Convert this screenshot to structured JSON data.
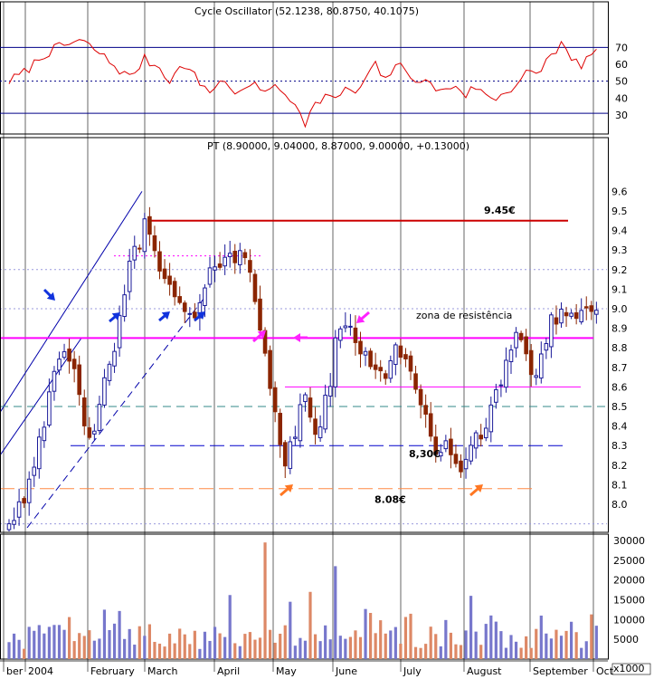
{
  "chart_data": {
    "type": "candlestick",
    "colors": {
      "up": "#1a1a99",
      "down": "#8b2500",
      "volume_up": "#7777cc",
      "volume_down": "#dd8866",
      "resistance": "#ff00ff",
      "support": "#0000cc",
      "low_support": "#ff8844",
      "top_line": "#cc0000",
      "oscillator": "#dd0000",
      "dotted": "#9999dd",
      "teal": "#338888"
    },
    "months": [
      "ber",
      "2004",
      "February",
      "March",
      "April",
      "May",
      "June",
      "July",
      "August",
      "September",
      "Oct"
    ],
    "oscillator": {
      "header": "Cycle Oscillator (52.1238, 80.8750, 40.1075)",
      "ylim": [
        20,
        80
      ],
      "ticks": [
        "30",
        "40",
        "50",
        "60",
        "70"
      ],
      "upper_band": 70,
      "mid_band": 50,
      "lower_band": 31,
      "anchors": [
        [
          0,
          50
        ],
        [
          3,
          55
        ],
        [
          7,
          66
        ],
        [
          10,
          70
        ],
        [
          14,
          74
        ],
        [
          17,
          69
        ],
        [
          21,
          59
        ],
        [
          24,
          52
        ],
        [
          27,
          63
        ],
        [
          30,
          58
        ],
        [
          32,
          51
        ],
        [
          35,
          60
        ],
        [
          38,
          49
        ],
        [
          40,
          44
        ],
        [
          42,
          50
        ],
        [
          44,
          47
        ],
        [
          46,
          42
        ],
        [
          48,
          48
        ],
        [
          50,
          45
        ],
        [
          52,
          47
        ],
        [
          54,
          44
        ],
        [
          56,
          40
        ],
        [
          58,
          33
        ],
        [
          59,
          26
        ],
        [
          61,
          36
        ],
        [
          63,
          42
        ],
        [
          65,
          38
        ],
        [
          67,
          47
        ],
        [
          69,
          41
        ],
        [
          71,
          52
        ],
        [
          73,
          59
        ],
        [
          75,
          50
        ],
        [
          77,
          61
        ],
        [
          79,
          55
        ],
        [
          81,
          52
        ],
        [
          83,
          49
        ],
        [
          85,
          46
        ],
        [
          87,
          44
        ],
        [
          89,
          48
        ],
        [
          91,
          42
        ],
        [
          93,
          47
        ],
        [
          95,
          41
        ],
        [
          97,
          40
        ],
        [
          99,
          44
        ],
        [
          101,
          48
        ],
        [
          103,
          55
        ],
        [
          105,
          53
        ],
        [
          107,
          62
        ],
        [
          109,
          69
        ],
        [
          110,
          72
        ],
        [
          112,
          62
        ],
        [
          114,
          60
        ],
        [
          116,
          66
        ]
      ]
    },
    "price": {
      "header": "PT (8.90000, 9.04000, 8.87000, 9.00000, +0.13000)",
      "ylim": [
        7.88,
        9.65
      ],
      "ticks": [
        "8.0",
        "8.1",
        "8.2",
        "8.3",
        "8.4",
        "8.5",
        "8.6",
        "8.7",
        "8.8",
        "8.9",
        "9.0",
        "9.1",
        "9.2",
        "9.3",
        "9.4",
        "9.5",
        "9.6"
      ],
      "anchors": [
        [
          0,
          7.93
        ],
        [
          3,
          8.04
        ],
        [
          6,
          8.35
        ],
        [
          9,
          8.62
        ],
        [
          11,
          8.78
        ],
        [
          13,
          8.65
        ],
        [
          15,
          8.45
        ],
        [
          17,
          8.32
        ],
        [
          19,
          8.6
        ],
        [
          21,
          8.82
        ],
        [
          23,
          9.1
        ],
        [
          25,
          9.28
        ],
        [
          27,
          9.42
        ],
        [
          29,
          9.35
        ],
        [
          31,
          9.15
        ],
        [
          33,
          9.02
        ],
        [
          35,
          9.0
        ],
        [
          37,
          8.93
        ],
        [
          39,
          9.08
        ],
        [
          41,
          9.22
        ],
        [
          43,
          9.3
        ],
        [
          45,
          9.28
        ],
        [
          47,
          9.25
        ],
        [
          49,
          9.05
        ],
        [
          51,
          8.8
        ],
        [
          53,
          8.5
        ],
        [
          55,
          8.15
        ],
        [
          57,
          8.38
        ],
        [
          59,
          8.55
        ],
        [
          61,
          8.38
        ],
        [
          63,
          8.5
        ],
        [
          65,
          8.8
        ],
        [
          67,
          8.92
        ],
        [
          69,
          8.85
        ],
        [
          71,
          8.78
        ],
        [
          73,
          8.72
        ],
        [
          75,
          8.62
        ],
        [
          77,
          8.85
        ],
        [
          79,
          8.72
        ],
        [
          81,
          8.55
        ],
        [
          83,
          8.42
        ],
        [
          85,
          8.3
        ],
        [
          87,
          8.32
        ],
        [
          89,
          8.15
        ],
        [
          91,
          8.2
        ],
        [
          93,
          8.42
        ],
        [
          95,
          8.35
        ],
        [
          97,
          8.55
        ],
        [
          99,
          8.75
        ],
        [
          101,
          8.88
        ],
        [
          103,
          8.72
        ],
        [
          105,
          8.68
        ],
        [
          107,
          8.85
        ],
        [
          108,
          8.98
        ]
      ],
      "resistance_level": 8.85,
      "resistance_label": "zona de resistência",
      "top_level": 9.45,
      "top_label": "9.45€",
      "support_level": 8.3,
      "support_label": "8,30€",
      "low_level": 8.08,
      "low_label": "8.08€",
      "teal_level": 8.5,
      "dotted_levels": [
        9.2,
        9.0,
        7.9
      ],
      "short_dotted": [
        9.27,
        8.6
      ]
    },
    "volume": {
      "unit_label": "x1000",
      "ylim": [
        0,
        31000
      ],
      "ticks": [
        "5000",
        "10000",
        "15000",
        "20000",
        "25000",
        "30000"
      ],
      "spikes": [
        [
          44,
          16200
        ],
        [
          51,
          29500
        ],
        [
          56,
          14500
        ],
        [
          60,
          17000
        ],
        [
          65,
          23500
        ],
        [
          92,
          16000
        ],
        [
          106,
          11000
        ]
      ]
    }
  }
}
